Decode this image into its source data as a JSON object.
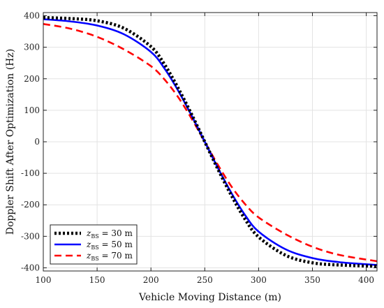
{
  "chart_data": {
    "type": "line",
    "xlabel": "Vehicle Moving Distance (m)",
    "ylabel": "Doppler Shift After Optimization (Hz)",
    "xlim": [
      100,
      410
    ],
    "ylim": [
      -410,
      410
    ],
    "xticks": [
      100,
      150,
      200,
      250,
      300,
      350,
      400
    ],
    "yticks": [
      -400,
      -300,
      -200,
      -100,
      0,
      100,
      200,
      300,
      400
    ],
    "grid": true,
    "legend_position": "bottom-left",
    "x": [
      100,
      125,
      150,
      175,
      200,
      212.5,
      225,
      237.5,
      250,
      262.5,
      275,
      287.5,
      300,
      325,
      350,
      375,
      410
    ],
    "series": [
      {
        "name_main": "z",
        "name_sub": "BS",
        "name_rest": " = 30 m",
        "color": "#000000",
        "style": "dotted",
        "values": [
          394,
          391,
          384,
          360,
          302,
          246,
          172,
          89,
          0,
          -89,
          -172,
          -246,
          -302,
          -360,
          -384,
          -391,
          -395
        ]
      },
      {
        "name_main": "z",
        "name_sub": "BS",
        "name_rest": " = 50 m",
        "color": "#0000ff",
        "style": "solid",
        "values": [
          389,
          382,
          369,
          341,
          285,
          233,
          164,
          85,
          0,
          -85,
          -164,
          -233,
          -285,
          -341,
          -369,
          -382,
          -391
        ]
      },
      {
        "name_main": "z",
        "name_sub": "BS",
        "name_rest": " = 70 m",
        "color": "#ff0000",
        "style": "dashed",
        "values": [
          374,
          359,
          333,
          293,
          240,
          198,
          143,
          75,
          0,
          -75,
          -143,
          -198,
          -240,
          -293,
          -333,
          -359,
          -379
        ]
      }
    ]
  }
}
